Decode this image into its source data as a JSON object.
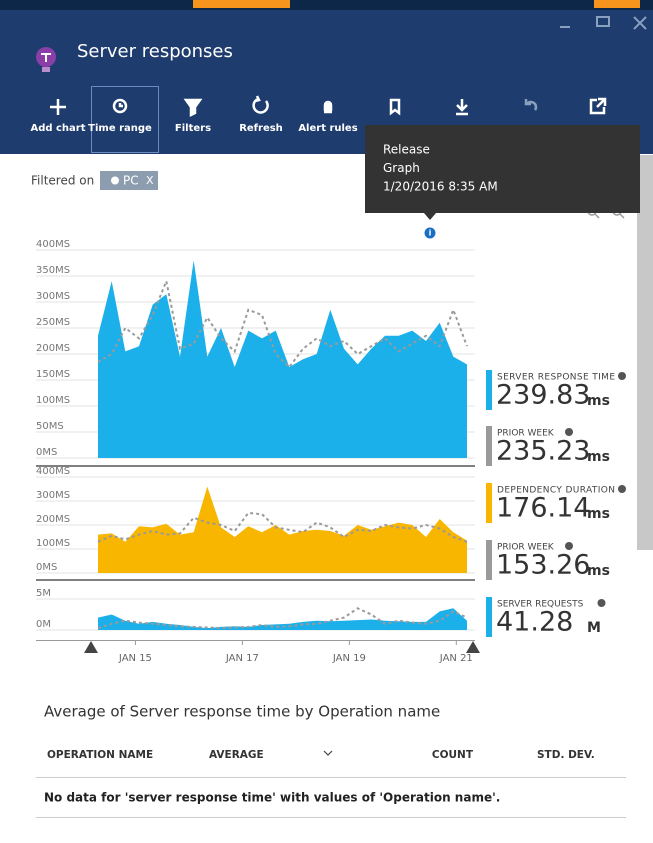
{
  "header": {
    "title": "Server responses"
  },
  "toolbar": {
    "buttons": [
      "Add chart",
      "Time range",
      "Filters",
      "Refresh",
      "Alert rules"
    ]
  },
  "filter": {
    "label": "Filtered on",
    "chip": "PC",
    "close": "X"
  },
  "tooltip": {
    "lines": [
      "Release",
      "Graph",
      "1/20/2016 8:35 AM"
    ]
  },
  "xaxis": {
    "xlim": [
      14.3,
      21.2
    ],
    "xticks": [
      {
        "value": 15,
        "label": "JAN 15"
      },
      {
        "value": 17,
        "label": "JAN 17"
      },
      {
        "value": 19,
        "label": "JAN 19"
      },
      {
        "value": 21,
        "label": "JAN 21"
      }
    ]
  },
  "charts": [
    {
      "type": "area",
      "ylim": [
        0,
        400
      ],
      "yticks": [
        {
          "value": 0,
          "label": "0MS"
        },
        {
          "value": 50,
          "label": "50MS"
        },
        {
          "value": 100,
          "label": "100MS"
        },
        {
          "value": 150,
          "label": "150MS"
        },
        {
          "value": 200,
          "label": "200MS"
        },
        {
          "value": 250,
          "label": "250MS"
        },
        {
          "value": 300,
          "label": "300MS"
        },
        {
          "value": 350,
          "label": "350MS"
        },
        {
          "value": 400,
          "label": "400MS"
        }
      ],
      "series": [
        {
          "color": "#1bb0ea",
          "style": "area",
          "values": [
            235,
            340,
            205,
            215,
            295,
            315,
            195,
            380,
            195,
            250,
            175,
            245,
            230,
            245,
            175,
            190,
            200,
            285,
            210,
            180,
            210,
            235,
            235,
            245,
            225,
            260,
            195,
            180
          ]
        },
        {
          "color": "#9a9a9a",
          "style": "dashed",
          "values": [
            185,
            200,
            250,
            230,
            275,
            340,
            210,
            220,
            270,
            230,
            205,
            285,
            275,
            200,
            175,
            210,
            230,
            215,
            225,
            200,
            215,
            230,
            205,
            220,
            235,
            215,
            285,
            215
          ]
        }
      ]
    },
    {
      "type": "area",
      "ylim": [
        0,
        400
      ],
      "yticks": [
        {
          "value": 0,
          "label": "0MS"
        },
        {
          "value": 100,
          "label": "100MS"
        },
        {
          "value": 200,
          "label": "200MS"
        },
        {
          "value": 300,
          "label": "300MS"
        },
        {
          "value": 400,
          "label": "400MS"
        }
      ],
      "series": [
        {
          "color": "#f9b600",
          "style": "area",
          "values": [
            160,
            165,
            130,
            195,
            190,
            205,
            160,
            170,
            360,
            190,
            150,
            195,
            170,
            200,
            160,
            175,
            180,
            175,
            155,
            200,
            180,
            195,
            210,
            200,
            150,
            225,
            170,
            135
          ]
        },
        {
          "color": "#9a9a9a",
          "style": "dashed",
          "values": [
            130,
            155,
            140,
            160,
            175,
            160,
            165,
            230,
            210,
            200,
            175,
            250,
            245,
            190,
            180,
            170,
            210,
            190,
            150,
            180,
            175,
            200,
            190,
            185,
            200,
            185,
            150,
            130
          ]
        }
      ]
    },
    {
      "type": "area",
      "ylim": [
        0,
        5
      ],
      "yticks": [
        {
          "value": 0,
          "label": "0M"
        },
        {
          "value": 5,
          "label": "5M"
        }
      ],
      "series": [
        {
          "color": "#1bb0ea",
          "style": "area",
          "values": [
            2.0,
            2.5,
            1.5,
            1.0,
            1.3,
            1.0,
            0.8,
            0.5,
            0.3,
            0.5,
            0.6,
            0.5,
            0.8,
            0.9,
            1.0,
            1.3,
            1.5,
            1.4,
            1.5,
            1.6,
            1.7,
            1.5,
            1.4,
            1.3,
            1.3,
            3.0,
            3.5,
            1.5
          ]
        },
        {
          "color": "#9a9a9a",
          "style": "dashed",
          "values": [
            0.3,
            1.0,
            1.5,
            1.2,
            1.0,
            0.8,
            0.6,
            0.5,
            0.4,
            0.3,
            0.4,
            0.5,
            0.8,
            0.5,
            0.6,
            0.9,
            1.0,
            1.5,
            2.0,
            3.5,
            2.5,
            1.0,
            1.5,
            1.2,
            1.0,
            1.5,
            3.0,
            2.0
          ]
        }
      ]
    }
  ],
  "metrics": [
    {
      "label": "SERVER RESPONSE TIME",
      "value": "239.83",
      "unit": "ms",
      "color": "#1bb0ea"
    },
    {
      "label": "PRIOR WEEK",
      "value": "235.23",
      "unit": "ms",
      "color": "#9a9a9a"
    },
    {
      "label": "DEPENDENCY DURATION",
      "value": "176.14",
      "unit": "ms",
      "color": "#f9b600"
    },
    {
      "label": "PRIOR WEEK",
      "value": "153.26",
      "unit": "ms",
      "color": "#9a9a9a"
    },
    {
      "label": "SERVER REQUESTS",
      "value": "41.28",
      "unit": "M",
      "color": "#1bb0ea"
    }
  ],
  "table": {
    "title": "Average of Server response time by Operation name",
    "headers": [
      "OPERATION NAME",
      "AVERAGE",
      "COUNT",
      "STD. DEV."
    ],
    "message": "No data for 'server response time' with values of 'Operation name'."
  }
}
